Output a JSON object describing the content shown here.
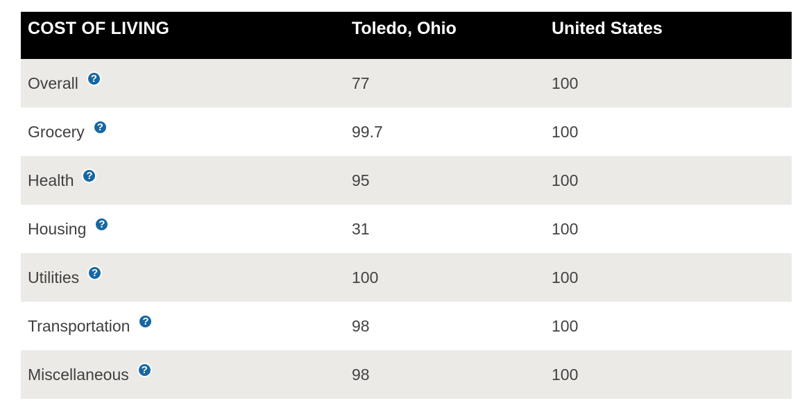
{
  "table": {
    "columns": [
      "COST OF LIVING",
      "Toledo, Ohio",
      "United States"
    ],
    "help_icon": {
      "glyph": "?",
      "color": "#1767a3"
    },
    "rows": [
      {
        "label": "Overall",
        "toledo": "77",
        "us": "100"
      },
      {
        "label": "Grocery",
        "toledo": "99.7",
        "us": "100"
      },
      {
        "label": "Health",
        "toledo": "95",
        "us": "100"
      },
      {
        "label": "Housing",
        "toledo": "31",
        "us": "100"
      },
      {
        "label": "Utilities",
        "toledo": "100",
        "us": "100"
      },
      {
        "label": "Transportation",
        "toledo": "98",
        "us": "100"
      },
      {
        "label": "Miscellaneous",
        "toledo": "98",
        "us": "100"
      }
    ],
    "colors": {
      "header_bg": "#000000",
      "header_text": "#ffffff",
      "row_bg": "#ffffff",
      "row_alt_bg": "#eceae6",
      "text": "#3f3f3f",
      "icon_blue": "#1767a3"
    }
  },
  "chart_data": {
    "type": "table",
    "title": "COST OF LIVING",
    "columns": [
      "COST OF LIVING",
      "Toledo, Ohio",
      "United States"
    ],
    "categories": [
      "Overall",
      "Grocery",
      "Health",
      "Housing",
      "Utilities",
      "Transportation",
      "Miscellaneous"
    ],
    "series": [
      {
        "name": "Toledo, Ohio",
        "values": [
          77,
          99.7,
          95,
          31,
          100,
          98,
          98
        ]
      },
      {
        "name": "United States",
        "values": [
          100,
          100,
          100,
          100,
          100,
          100,
          100
        ]
      }
    ]
  }
}
